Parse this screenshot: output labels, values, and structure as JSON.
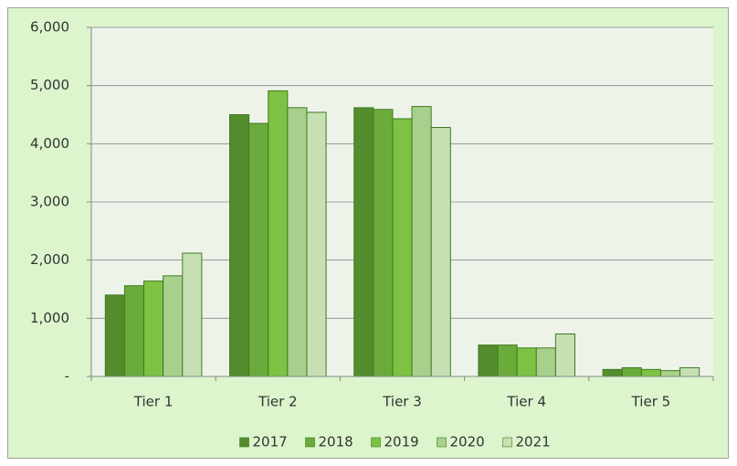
{
  "chart_data": {
    "type": "bar",
    "categories": [
      "Tier 1",
      "Tier 2",
      "Tier 3",
      "Tier 4",
      "Tier 5"
    ],
    "series": [
      {
        "name": "2017",
        "color": "#548d2e",
        "values": [
          1400,
          4500,
          4620,
          540,
          120
        ]
      },
      {
        "name": "2018",
        "color": "#6aab3c",
        "values": [
          1560,
          4350,
          4590,
          540,
          150
        ]
      },
      {
        "name": "2019",
        "color": "#7dc242",
        "values": [
          1640,
          4910,
          4430,
          490,
          120
        ]
      },
      {
        "name": "2020",
        "color": "#a8d08d",
        "values": [
          1730,
          4620,
          4640,
          490,
          100
        ]
      },
      {
        "name": "2021",
        "color": "#c6e0b4",
        "values": [
          2120,
          4540,
          4280,
          730,
          150
        ]
      }
    ],
    "ylim": [
      0,
      6000
    ],
    "yticks": [
      {
        "value": 0,
        "label": "-"
      },
      {
        "value": 1000,
        "label": "1,000"
      },
      {
        "value": 2000,
        "label": "2,000"
      },
      {
        "value": 3000,
        "label": "3,000"
      },
      {
        "value": 4000,
        "label": "4,000"
      },
      {
        "value": 5000,
        "label": "5,000"
      },
      {
        "value": 6000,
        "label": "6,000"
      }
    ],
    "grid": true,
    "legend": "bottom"
  }
}
